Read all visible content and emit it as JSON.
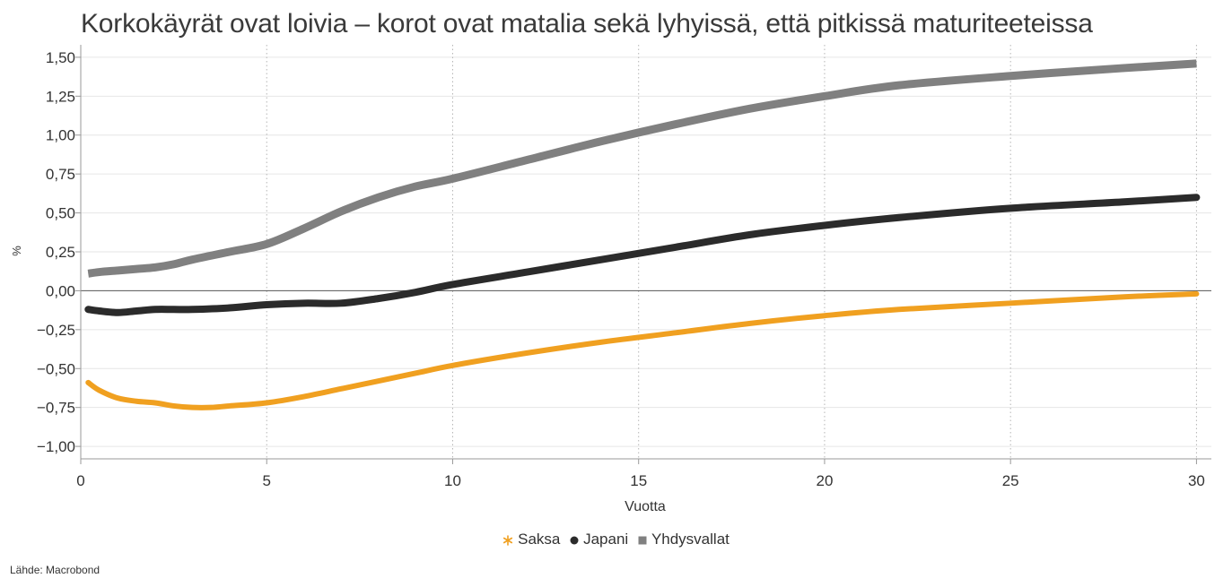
{
  "title": "Korkokäyrät ovat loivia – korot ovat matalia sekä lyhyissä, että pitkissä maturiteeteissa",
  "source": "Lähde: Macrobond",
  "colors": {
    "Saksa": "#f0a020",
    "Japani": "#2b2b2b",
    "Yhdysvallat": "#808080"
  },
  "legend": [
    {
      "name": "Saksa",
      "marker": "star"
    },
    {
      "name": "Japani",
      "marker": "circle"
    },
    {
      "name": "Yhdysvallat",
      "marker": "square"
    }
  ],
  "chart_data": {
    "type": "line",
    "title": "Korkokäyrät ovat loivia – korot ovat matalia sekä lyhyissä, että pitkissä maturiteeteissa",
    "xlabel": "Vuotta",
    "ylabel": "%",
    "xlim": [
      0,
      30.4
    ],
    "ylim": [
      -1.08,
      1.58
    ],
    "x_ticks": [
      0,
      5,
      10,
      15,
      20,
      25,
      30
    ],
    "y_ticks": [
      -1.0,
      -0.75,
      -0.5,
      -0.25,
      0.0,
      0.25,
      0.5,
      0.75,
      1.0,
      1.25,
      1.5
    ],
    "y_tick_labels": [
      "−1,00",
      "−0,75",
      "−0,50",
      "−0,25",
      "0,00",
      "0,25",
      "0,50",
      "0,75",
      "1,00",
      "1,25",
      "1,50"
    ],
    "vertical_grid": [
      5,
      10,
      15,
      20,
      25,
      30
    ],
    "legend_position": "bottom",
    "series": [
      {
        "name": "Saksa",
        "x": [
          0.2,
          0.5,
          1,
          1.5,
          2,
          2.5,
          3,
          3.5,
          4,
          5,
          6,
          7,
          8,
          9,
          10,
          12,
          14,
          16,
          18,
          20,
          22,
          25,
          28,
          30
        ],
        "values": [
          -0.59,
          -0.64,
          -0.69,
          -0.71,
          -0.72,
          -0.74,
          -0.75,
          -0.75,
          -0.74,
          -0.72,
          -0.68,
          -0.63,
          -0.58,
          -0.53,
          -0.48,
          -0.4,
          -0.33,
          -0.27,
          -0.21,
          -0.16,
          -0.12,
          -0.08,
          -0.04,
          -0.02
        ]
      },
      {
        "name": "Japani",
        "x": [
          0.2,
          0.5,
          1,
          1.5,
          2,
          2.5,
          3,
          4,
          5,
          6,
          7,
          8,
          9,
          10,
          12,
          14,
          16,
          18,
          20,
          22,
          25,
          28,
          30
        ],
        "values": [
          -0.12,
          -0.13,
          -0.14,
          -0.13,
          -0.12,
          -0.12,
          -0.12,
          -0.11,
          -0.09,
          -0.08,
          -0.08,
          -0.05,
          -0.01,
          0.04,
          0.12,
          0.2,
          0.28,
          0.36,
          0.42,
          0.47,
          0.53,
          0.57,
          0.6
        ]
      },
      {
        "name": "Yhdysvallat",
        "x": [
          0.2,
          0.5,
          1,
          1.5,
          2,
          2.5,
          3,
          4,
          5,
          6,
          7,
          8,
          9,
          10,
          12,
          14,
          16,
          18,
          20,
          22,
          25,
          28,
          30
        ],
        "values": [
          0.11,
          0.12,
          0.13,
          0.14,
          0.15,
          0.17,
          0.2,
          0.25,
          0.3,
          0.4,
          0.51,
          0.6,
          0.67,
          0.72,
          0.84,
          0.96,
          1.07,
          1.17,
          1.25,
          1.32,
          1.38,
          1.43,
          1.46
        ]
      }
    ]
  }
}
